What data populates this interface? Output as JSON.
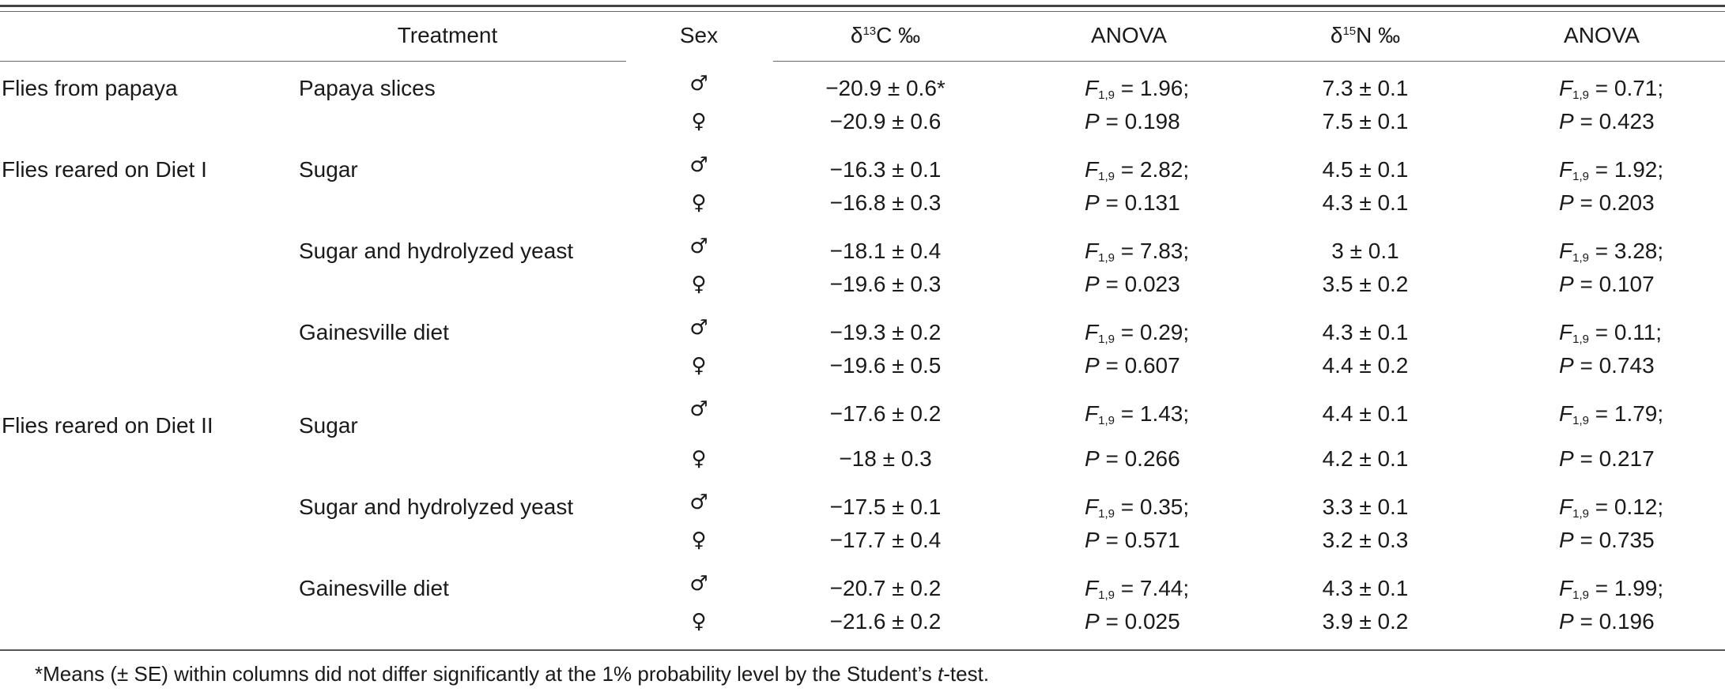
{
  "headers": {
    "treatment": "Treatment",
    "sex": "Sex",
    "d13c_prefix": "δ",
    "d13c_sup": "13",
    "d13c_suffix": "C ‰",
    "anova1": "ANOVA",
    "d15n_prefix": "δ",
    "d15n_sup": "15",
    "d15n_suffix": "N ‰",
    "anova2": "ANOVA"
  },
  "stat_labels": {
    "f": "F",
    "f_sub": "1,9",
    "p": "P"
  },
  "sex_symbols": {
    "male": "♂",
    "female": "♀"
  },
  "groups": [
    {
      "label": "Flies from papaya"
    },
    {
      "label": "Flies reared on Diet I"
    },
    {
      "label": "Flies reared on Diet II"
    }
  ],
  "rows": [
    {
      "treatment": "Papaya slices",
      "male": {
        "d13c": "−20.9 ± 0.6*",
        "f": " = 1.96;",
        "d15n": "7.3 ± 0.1",
        "f2": " = 0.71;"
      },
      "female": {
        "d13c": "−20.9 ± 0.6",
        "p": " = 0.198",
        "d15n": "7.5 ± 0.1",
        "p2": " = 0.423"
      }
    },
    {
      "treatment": "Sugar",
      "male": {
        "d13c": "−16.3 ± 0.1",
        "f": " = 2.82;",
        "d15n": "4.5 ± 0.1",
        "f2": " = 1.92;"
      },
      "female": {
        "d13c": "−16.8 ± 0.3",
        "p": " = 0.131",
        "d15n": "4.3 ± 0.1",
        "p2": " = 0.203"
      }
    },
    {
      "treatment": "Sugar and hydrolyzed yeast",
      "male": {
        "d13c": "−18.1 ± 0.4",
        "f": " = 7.83;",
        "d15n": "3 ± 0.1",
        "f2": " = 3.28;"
      },
      "female": {
        "d13c": "−19.6 ± 0.3",
        "p": " = 0.023",
        "d15n": "3.5 ± 0.2",
        "p2": " = 0.107"
      }
    },
    {
      "treatment": "Gainesville diet",
      "male": {
        "d13c": "−19.3 ± 0.2",
        "f": " = 0.29;",
        "d15n": "4.3 ± 0.1",
        "f2": " = 0.11;"
      },
      "female": {
        "d13c": "−19.6 ± 0.5",
        "p": " = 0.607",
        "d15n": "4.4 ± 0.2",
        "p2": " = 0.743"
      }
    },
    {
      "treatment": "Sugar",
      "male": {
        "d13c": "−17.6 ± 0.2",
        "f": " = 1.43;",
        "d15n": "4.4 ± 0.1",
        "f2": " = 1.79;"
      },
      "female": {
        "d13c": "−18 ± 0.3",
        "p": " = 0.266",
        "d15n": "4.2 ± 0.1",
        "p2": " = 0.217"
      }
    },
    {
      "treatment": "Sugar and hydrolyzed yeast",
      "male": {
        "d13c": "−17.5 ± 0.1",
        "f": " = 0.35;",
        "d15n": "3.3 ± 0.1",
        "f2": " = 0.12;"
      },
      "female": {
        "d13c": "−17.7 ± 0.4",
        "p": " = 0.571",
        "d15n": "3.2 ± 0.3",
        "p2": " = 0.735"
      }
    },
    {
      "treatment": "Gainesville diet",
      "male": {
        "d13c": "−20.7 ± 0.2",
        "f": " = 7.44;",
        "d15n": "4.3 ± 0.1",
        "f2": " = 1.99;"
      },
      "female": {
        "d13c": "−21.6 ± 0.2",
        "p": " = 0.025",
        "d15n": "3.9 ± 0.2",
        "p2": " = 0.196"
      }
    }
  ],
  "footnote": {
    "before": "*Means (± SE) within columns did not differ significantly at the 1% probability level by the Student’s ",
    "italic": "t",
    "after": "-test."
  }
}
